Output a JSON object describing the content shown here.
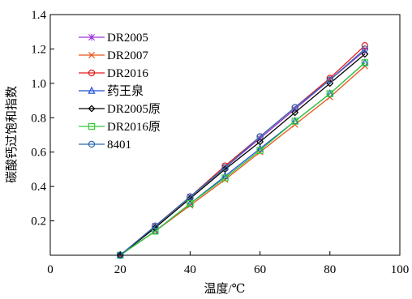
{
  "chart_data": {
    "type": "line",
    "xlabel": "温度/℃",
    "ylabel": "碳酸钙过饱和指数",
    "xlim": [
      0,
      100
    ],
    "ylim": [
      0,
      1.4
    ],
    "xticks": [
      "0",
      "20",
      "40",
      "60",
      "80",
      "100"
    ],
    "yticks": [
      "0.2",
      "0.4",
      "0.6",
      "0.8",
      "1.0",
      "1.2",
      "1.4"
    ],
    "x": [
      20,
      30,
      40,
      50,
      60,
      70,
      80,
      90
    ],
    "legend": "top-left",
    "grid": false,
    "series": [
      {
        "name": "DR2005",
        "marker": "asterisk",
        "color": "#9b30d9",
        "values": [
          0,
          0.17,
          0.34,
          0.51,
          0.68,
          0.85,
          1.02,
          1.19
        ]
      },
      {
        "name": "DR2007",
        "marker": "x",
        "color": "#e8541b",
        "values": [
          0,
          0.14,
          0.29,
          0.44,
          0.6,
          0.76,
          0.92,
          1.1
        ]
      },
      {
        "name": "DR2016",
        "marker": "circle",
        "color": "#e41a1c",
        "values": [
          0,
          0.17,
          0.34,
          0.52,
          0.69,
          0.86,
          1.03,
          1.22
        ]
      },
      {
        "name": "药王泉",
        "marker": "triangle",
        "color": "#1f4fd8",
        "values": [
          0,
          0.14,
          0.3,
          0.46,
          0.62,
          0.78,
          0.94,
          1.12
        ]
      },
      {
        "name": "DR2005原",
        "marker": "diamond",
        "color": "#000000",
        "values": [
          0,
          0.16,
          0.33,
          0.5,
          0.66,
          0.83,
          1.0,
          1.17
        ]
      },
      {
        "name": "DR2016原",
        "marker": "square",
        "color": "#33cc33",
        "values": [
          0,
          0.14,
          0.3,
          0.45,
          0.61,
          0.78,
          0.94,
          1.12
        ]
      },
      {
        "name": "8401",
        "marker": "circle",
        "color": "#2b6cb0",
        "values": [
          0,
          0.17,
          0.34,
          0.51,
          0.69,
          0.86,
          1.02,
          1.2
        ]
      }
    ]
  }
}
